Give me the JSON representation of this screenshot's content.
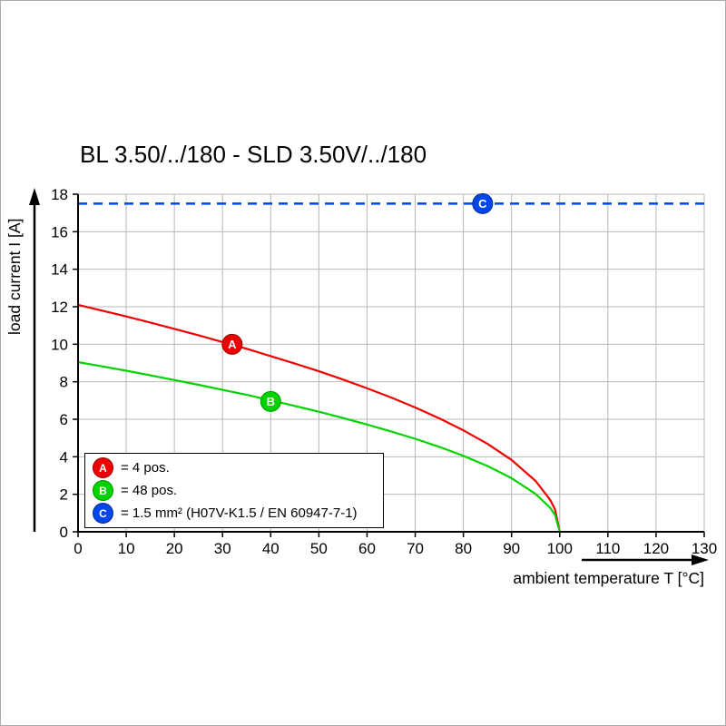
{
  "chart_data": {
    "type": "line",
    "title": "BL 3.50/../180 - SLD 3.50V/../180",
    "xlabel": "ambient temperature T [°C]",
    "ylabel": "load current I [A]",
    "xlim": [
      0,
      130
    ],
    "ylim": [
      0,
      18
    ],
    "x_ticks": [
      0,
      10,
      20,
      30,
      40,
      50,
      60,
      70,
      80,
      90,
      100,
      110,
      120,
      130
    ],
    "y_ticks": [
      0,
      2,
      4,
      6,
      8,
      10,
      12,
      14,
      16,
      18
    ],
    "grid": true,
    "grid_color": "#b8b8b8",
    "axis_color": "#000000",
    "legend_position": "bottom-left-inside",
    "series": [
      {
        "name": "A",
        "label": "= 4 pos.",
        "color": "#ee0000",
        "edge_color": "#990000",
        "style": "solid",
        "x": [
          0,
          5,
          10,
          15,
          20,
          25,
          30,
          35,
          40,
          45,
          50,
          55,
          60,
          65,
          70,
          75,
          80,
          85,
          90,
          95,
          98,
          99,
          100
        ],
        "y": [
          12.1,
          11.79,
          11.48,
          11.16,
          10.82,
          10.48,
          10.12,
          9.76,
          9.37,
          8.97,
          8.56,
          8.12,
          7.65,
          7.16,
          6.63,
          6.05,
          5.41,
          4.69,
          3.83,
          2.71,
          1.71,
          1.21,
          0
        ],
        "marker": {
          "letter": "A",
          "x": 32,
          "y": 10.0
        }
      },
      {
        "name": "B",
        "label": "= 48 pos.",
        "color": "#00d300",
        "edge_color": "#009600",
        "style": "solid",
        "x": [
          0,
          5,
          10,
          15,
          20,
          25,
          30,
          35,
          40,
          45,
          50,
          55,
          60,
          65,
          70,
          75,
          80,
          85,
          90,
          95,
          98,
          99,
          100
        ],
        "y": [
          9.05,
          8.82,
          8.59,
          8.34,
          8.09,
          7.84,
          7.57,
          7.3,
          7.01,
          6.71,
          6.4,
          6.07,
          5.72,
          5.35,
          4.96,
          4.53,
          4.05,
          3.51,
          2.86,
          2.02,
          1.28,
          0.91,
          0
        ],
        "marker": {
          "letter": "B",
          "x": 40,
          "y": 6.95
        }
      },
      {
        "name": "C",
        "label": "= 1.5 mm² (H07V-K1.5 / EN 60947-7-1)",
        "color": "#0046e8",
        "edge_color": "#002d99",
        "style": "dashed",
        "y_const": 17.5,
        "marker": {
          "letter": "C",
          "x": 84,
          "y": 17.5
        }
      }
    ]
  }
}
